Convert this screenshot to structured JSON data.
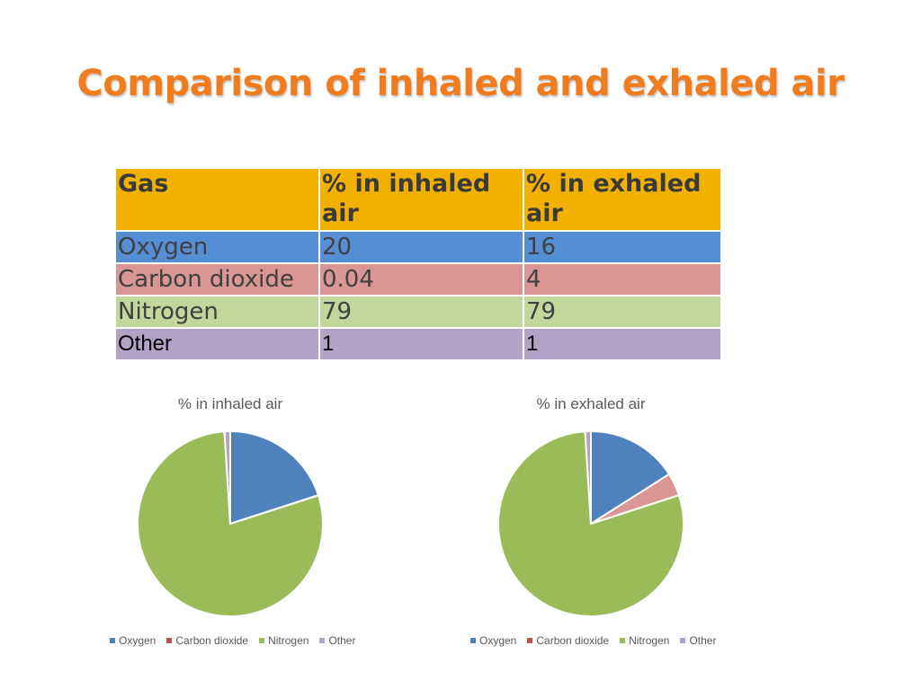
{
  "title": "Comparison of inhaled and exhaled air",
  "table": {
    "headers": [
      "Gas",
      "% in inhaled air",
      "% in exhaled air"
    ],
    "rows": [
      [
        "Oxygen",
        "20",
        "16"
      ],
      [
        "Carbon dioxide",
        "0.04",
        "4"
      ],
      [
        "Nitrogen",
        "79",
        "79"
      ],
      [
        "Other",
        "1",
        "1"
      ]
    ]
  },
  "colors": {
    "Oxygen": "#4f81bd",
    "Carbon dioxide": "#d99694",
    "Nitrogen": "#9bbb59",
    "Other": "#b3a2c7"
  },
  "legend_colors": {
    "Oxygen": "#4f81bd",
    "Carbon dioxide": "#c0504d",
    "Nitrogen": "#9bbb59",
    "Other": "#b3a2c7"
  },
  "chart_data": [
    {
      "type": "pie",
      "title": "% in inhaled air",
      "categories": [
        "Oxygen",
        "Carbon dioxide",
        "Nitrogen",
        "Other"
      ],
      "values": [
        20,
        0.04,
        79,
        1
      ],
      "legend": "bottom"
    },
    {
      "type": "pie",
      "title": "% in exhaled air",
      "categories": [
        "Oxygen",
        "Carbon dioxide",
        "Nitrogen",
        "Other"
      ],
      "values": [
        16,
        4,
        79,
        1
      ],
      "legend": "bottom"
    }
  ]
}
